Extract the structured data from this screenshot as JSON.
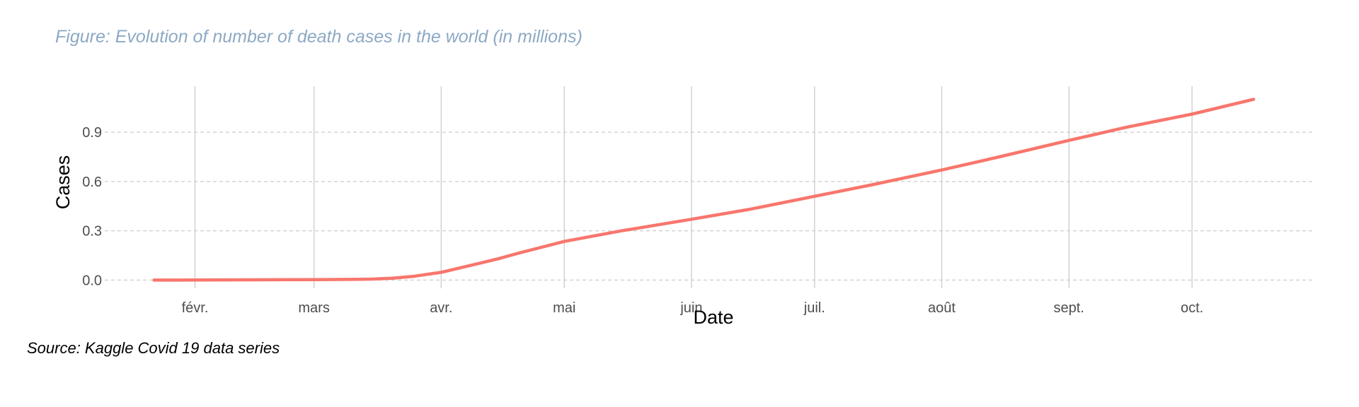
{
  "chart_data": {
    "type": "line",
    "title": "Figure: Evolution of number of death cases in the world (in millions)",
    "xlabel": "Date",
    "ylabel": "Cases",
    "caption": "Source: Kaggle Covid 19 data series",
    "x_tick_labels": [
      "févr.",
      "mars",
      "avr.",
      "mai",
      "juin",
      "juil.",
      "août",
      "sept.",
      "oct."
    ],
    "x_tick_dates": [
      "2020-02-01",
      "2020-03-01",
      "2020-04-01",
      "2020-05-01",
      "2020-06-01",
      "2020-07-01",
      "2020-08-01",
      "2020-09-01",
      "2020-10-01"
    ],
    "xlim": [
      "2020-01-10",
      "2020-10-31"
    ],
    "y_ticks": [
      0.0,
      0.3,
      0.6,
      0.9
    ],
    "y_tick_labels": [
      "0.0",
      "0.3",
      "0.6",
      "0.9"
    ],
    "ylim": [
      -0.05,
      1.18
    ],
    "grid": true,
    "legend": "none",
    "colors": {
      "line": "#F8766D",
      "title": "#8DA9C4",
      "grid_major": "#CCCCCC",
      "grid_minor": "#CCCCCC"
    },
    "series": [
      {
        "x": [
          "2020-01-22",
          "2020-02-01",
          "2020-02-15",
          "2020-03-01",
          "2020-03-10",
          "2020-03-15",
          "2020-03-20",
          "2020-03-25",
          "2020-04-01",
          "2020-04-10",
          "2020-04-15",
          "2020-04-20",
          "2020-05-01",
          "2020-05-15",
          "2020-06-01",
          "2020-06-15",
          "2020-07-01",
          "2020-07-15",
          "2020-08-01",
          "2020-08-15",
          "2020-09-01",
          "2020-09-15",
          "2020-10-01",
          "2020-10-16"
        ],
        "y": [
          0.0,
          0.0003,
          0.0015,
          0.003,
          0.004,
          0.006,
          0.011,
          0.022,
          0.047,
          0.1,
          0.13,
          0.165,
          0.235,
          0.3,
          0.37,
          0.43,
          0.51,
          0.58,
          0.67,
          0.75,
          0.85,
          0.93,
          1.01,
          1.1
        ]
      }
    ]
  }
}
